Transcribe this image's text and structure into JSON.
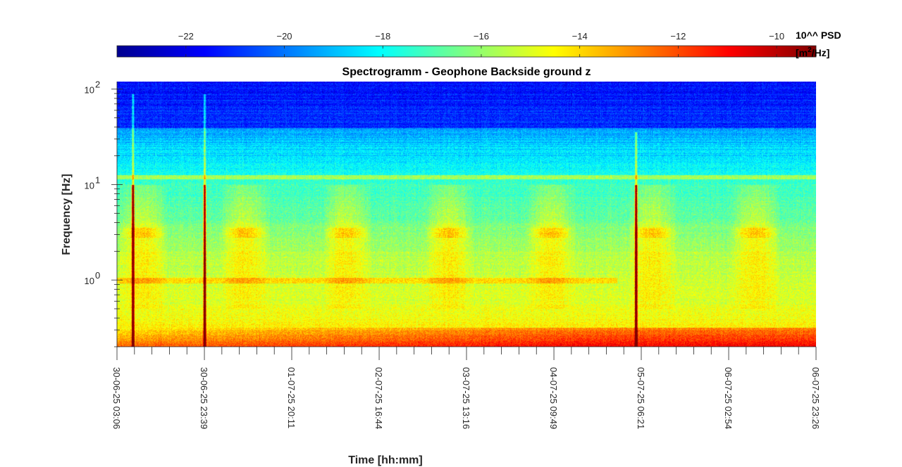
{
  "chart_data": {
    "type": "heatmap",
    "title": "Spectrogramm - Geophone Backside ground z",
    "xlabel": "Time [hh:mm]",
    "ylabel": "Frequency [Hz]",
    "y_scale": "log",
    "ylim": [
      0.2,
      120
    ],
    "y_ticks": [
      {
        "value": 1,
        "label": "10",
        "exp": "0"
      },
      {
        "value": 10,
        "label": "10",
        "exp": "1"
      },
      {
        "value": 100,
        "label": "10",
        "exp": "2"
      }
    ],
    "x_range": [
      "30-06-25 03:06",
      "06-07-25 23:26"
    ],
    "x_ticks": [
      "30-06-25 03:06",
      "30-06-25 23:39",
      "01-07-25 20:11",
      "02-07-25 16:44",
      "03-07-25 13:16",
      "04-07-25 09:49",
      "05-07-25 06:21",
      "06-07-25 02:54",
      "06-07-25 23:26"
    ],
    "colorbar": {
      "label_line1": "10^^ PSD",
      "label_line2": "[m",
      "label_sup": "2",
      "label_line2_tail": "/Hz]",
      "range": [
        -23.4,
        -9.2
      ],
      "ticks": [
        -22,
        -20,
        -18,
        -16,
        -14,
        -12,
        -10
      ],
      "colormap": "jet"
    },
    "features": {
      "spikes": [
        "30-06-25 06:48",
        "30-06-25 23:39",
        "05-07-25 05:04"
      ],
      "noise_floor_high_freq_log10psd": -21.5,
      "low_freq_log10psd": -11.5
    }
  }
}
